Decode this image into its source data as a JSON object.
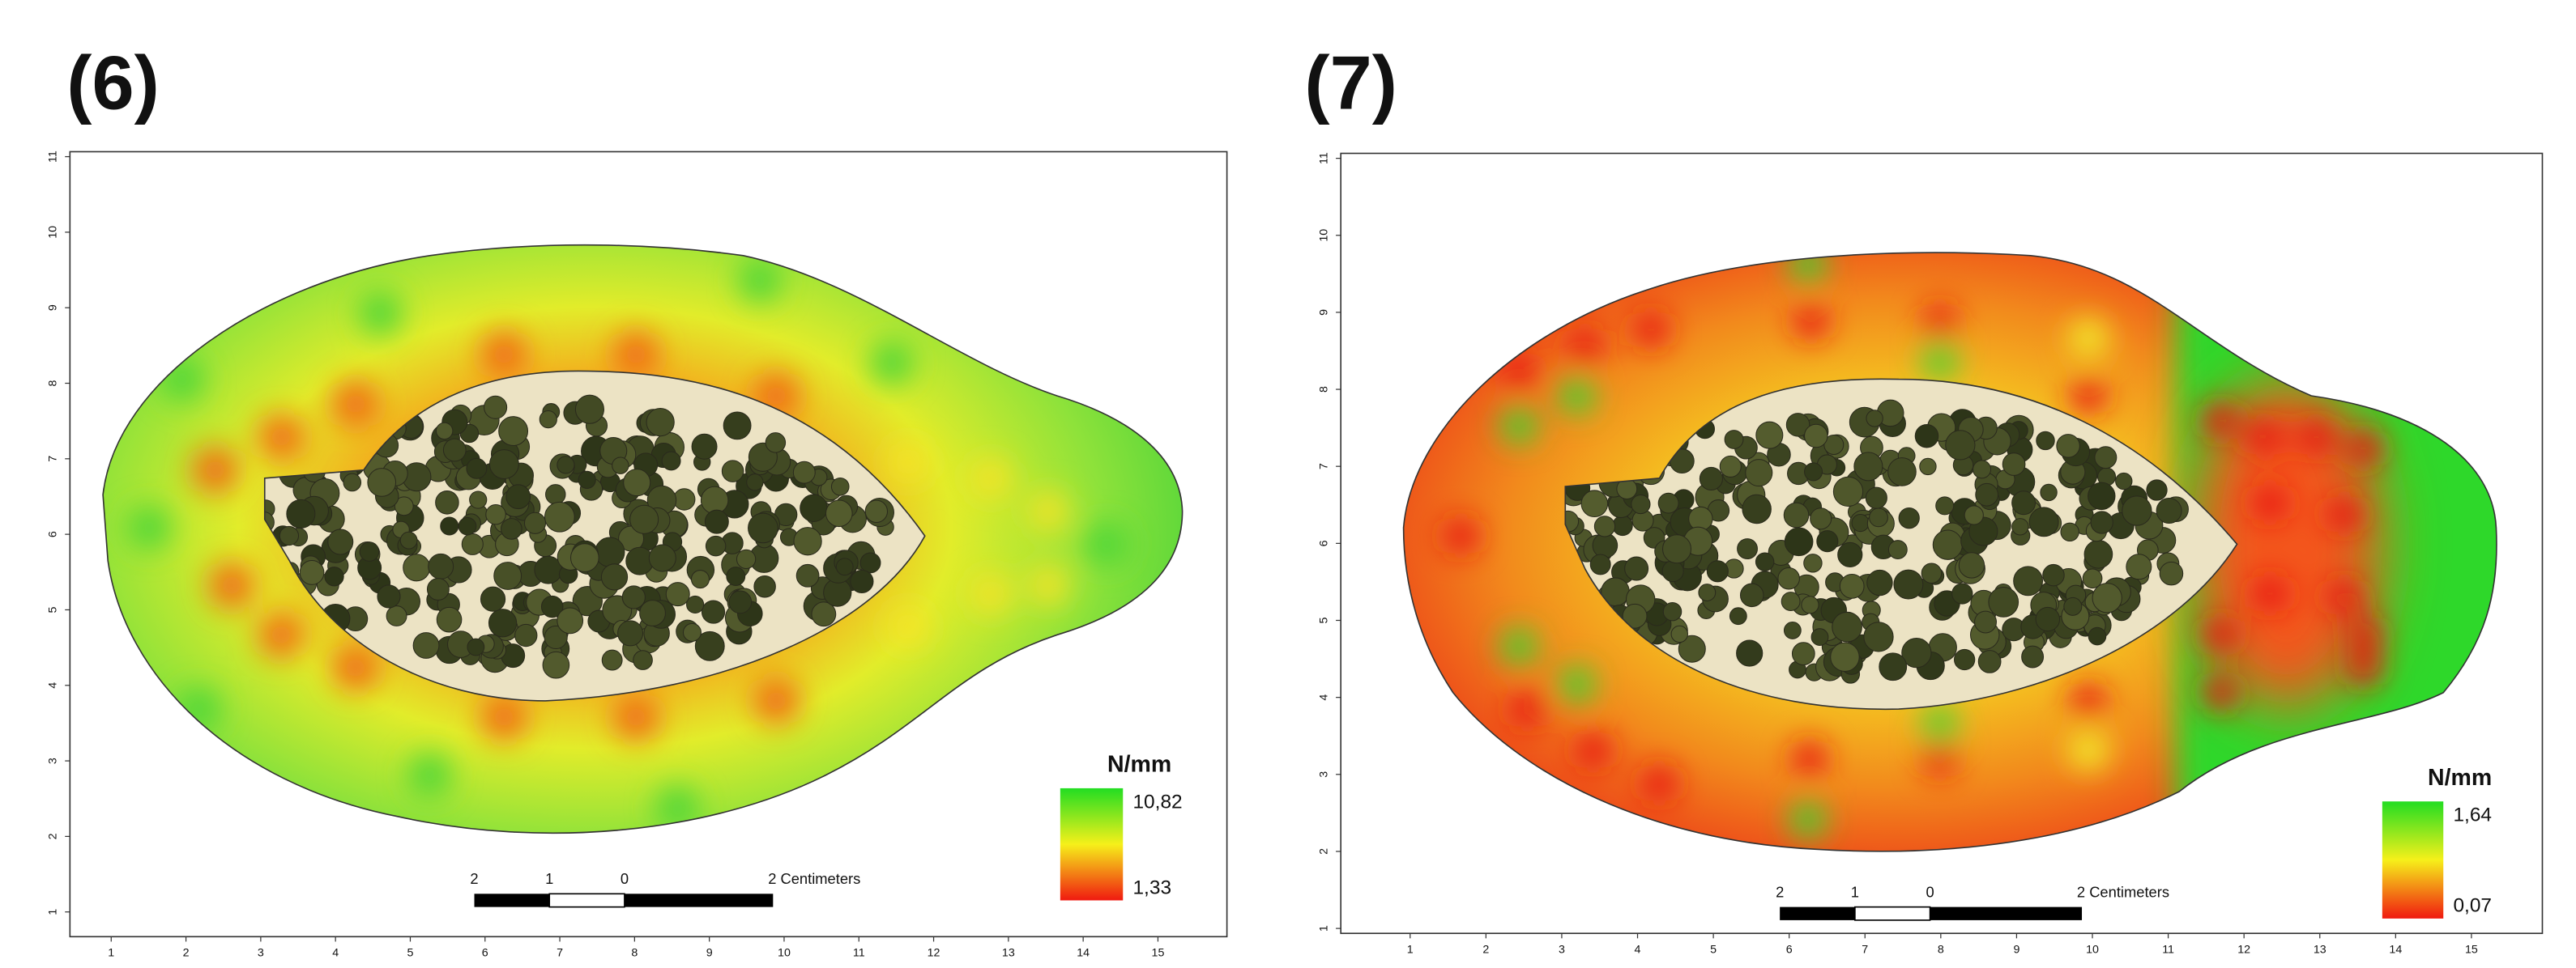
{
  "panels": [
    {
      "label": "(6)",
      "legend": {
        "title": "N/mm",
        "max": "10,82",
        "min": "1,33"
      },
      "scale_bar": {
        "labels": [
          "2",
          "1",
          "0"
        ],
        "unit": "2 Centimeters"
      },
      "xticks": [
        1,
        2,
        3,
        4,
        5,
        6,
        7,
        8,
        9,
        10,
        11,
        12,
        13,
        14,
        15
      ],
      "yticks": [
        1,
        2,
        3,
        4,
        5,
        6,
        7,
        8,
        9,
        10,
        11
      ]
    },
    {
      "label": "(7)",
      "legend": {
        "title": "N/mm",
        "max": "1,64",
        "min": "0,07"
      },
      "scale_bar": {
        "labels": [
          "2",
          "1",
          "0"
        ],
        "unit": "2 Centimeters"
      },
      "xticks": [
        1,
        2,
        3,
        4,
        5,
        6,
        7,
        8,
        9,
        10,
        11,
        12,
        13,
        14,
        15
      ],
      "yticks": [
        1,
        2,
        3,
        4,
        5,
        6,
        7,
        8,
        9,
        10,
        11
      ]
    }
  ]
}
